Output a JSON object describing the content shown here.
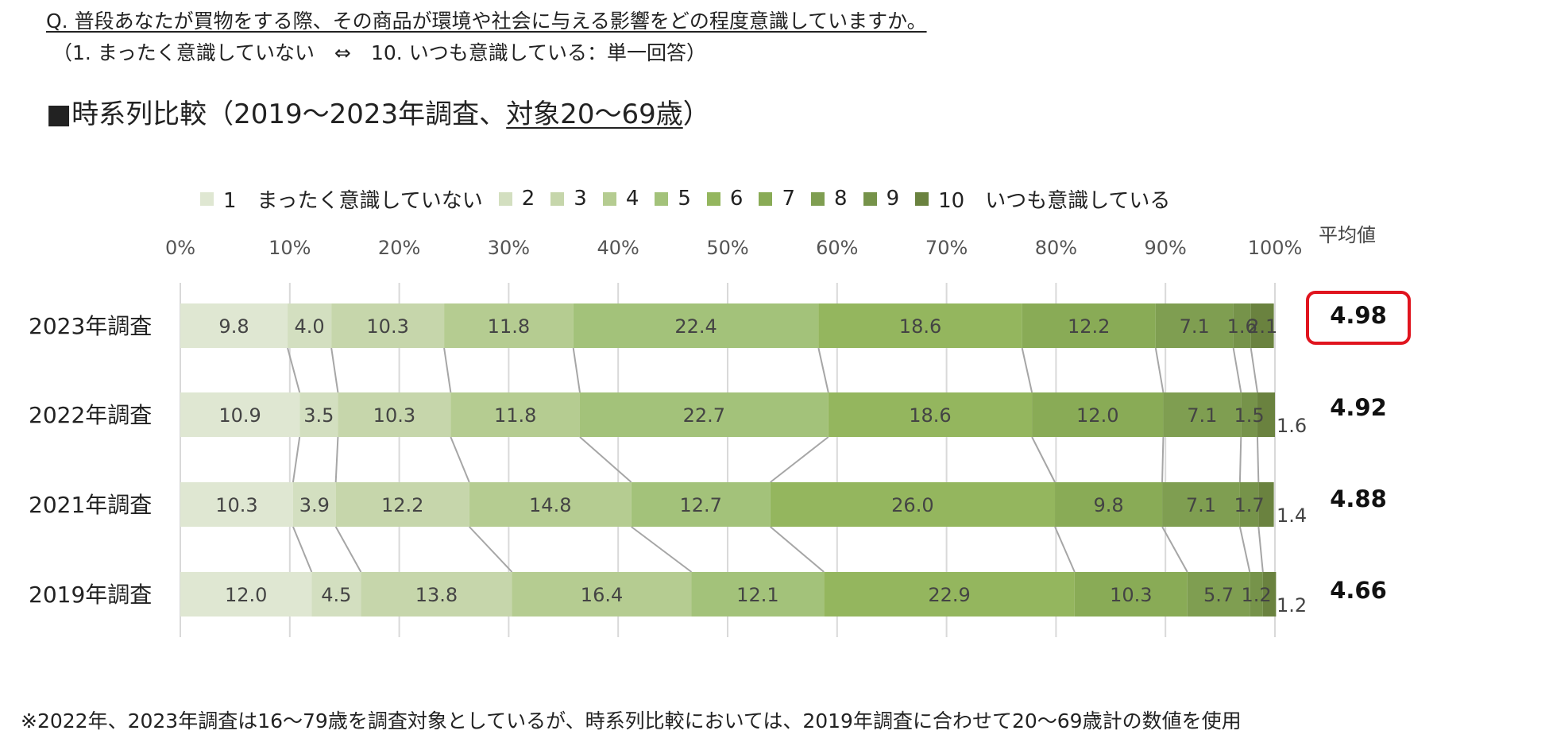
{
  "question": {
    "line1": "Q. 普段あなたが買物をする際、その商品が環境や社会に与える影響をどの程度意識していますか。",
    "line2": "（1. まったく意識していない　⇔　10. いつも意識している：単一回答）"
  },
  "section_title": {
    "prefix": "■時系列比較（2019～2023年調査、",
    "underlined": "対象20～69歳",
    "suffix": "）"
  },
  "legend": {
    "items": [
      {
        "label": "1　まったく意識していない",
        "color": "#dfe7d2"
      },
      {
        "label": "2",
        "color": "#d3dfc0"
      },
      {
        "label": "3",
        "color": "#c6d6ab"
      },
      {
        "label": "4",
        "color": "#b5cc91"
      },
      {
        "label": "5",
        "color": "#a3c27a"
      },
      {
        "label": "6",
        "color": "#94b65e"
      },
      {
        "label": "7",
        "color": "#89ab56"
      },
      {
        "label": "8",
        "color": "#7f9e51"
      },
      {
        "label": "9",
        "color": "#76934a"
      },
      {
        "label": "10　いつも意識している",
        "color": "#6a823f"
      }
    ]
  },
  "average": {
    "title": "平均値",
    "values": [
      "4.98",
      "4.92",
      "4.88",
      "4.66"
    ],
    "highlight_index": 0,
    "highlight_color": "#e0141e"
  },
  "chart_data": {
    "type": "bar",
    "orientation": "horizontal-stacked-100",
    "xlim": [
      0,
      100
    ],
    "x_ticks": [
      "0%",
      "10%",
      "20%",
      "30%",
      "40%",
      "50%",
      "60%",
      "70%",
      "80%",
      "90%",
      "100%"
    ],
    "grid": true,
    "legend_position": "top",
    "categories": [
      "2023年調査",
      "2022年調査",
      "2021年調査",
      "2019年調査"
    ],
    "series": [
      {
        "name": "1 まったく意識していない",
        "values": [
          9.8,
          10.9,
          10.3,
          12.0
        ]
      },
      {
        "name": "2",
        "values": [
          4.0,
          3.5,
          3.9,
          4.5
        ]
      },
      {
        "name": "3",
        "values": [
          10.3,
          10.3,
          12.2,
          13.8
        ]
      },
      {
        "name": "4",
        "values": [
          11.8,
          11.8,
          14.8,
          16.4
        ]
      },
      {
        "name": "5",
        "values": [
          22.4,
          22.7,
          12.7,
          12.1
        ]
      },
      {
        "name": "6",
        "values": [
          18.6,
          18.6,
          26.0,
          22.9
        ]
      },
      {
        "name": "7",
        "values": [
          12.2,
          12.0,
          9.8,
          10.3
        ]
      },
      {
        "name": "8",
        "values": [
          7.1,
          7.1,
          7.1,
          5.7
        ]
      },
      {
        "name": "9",
        "values": [
          1.6,
          1.5,
          1.7,
          1.2
        ]
      },
      {
        "name": "10 いつも意識している",
        "values": [
          2.1,
          1.6,
          1.4,
          1.2
        ]
      }
    ],
    "value_labels": [
      [
        "9.8",
        "4.0",
        "10.3",
        "11.8",
        "22.4",
        "18.6",
        "12.2",
        "7.1",
        "1.6",
        "2.1"
      ],
      [
        "10.9",
        "3.5",
        "10.3",
        "11.8",
        "22.7",
        "18.6",
        "12.0",
        "7.1",
        "1.5",
        "1.6"
      ],
      [
        "10.3",
        "3.9",
        "12.2",
        "14.8",
        "12.7",
        "26.0",
        "9.8",
        "7.1",
        "1.7",
        "1.4"
      ],
      [
        "12.0",
        "4.5",
        "13.8",
        "16.4",
        "12.1",
        "22.9",
        "10.3",
        "5.7",
        "1.2",
        "1.2"
      ]
    ]
  },
  "footnote": "※2022年、2023年調査は16～79歳を調査対象としているが、時系列比較においては、2019年調査に合わせて20～69歳計の数値を使用"
}
